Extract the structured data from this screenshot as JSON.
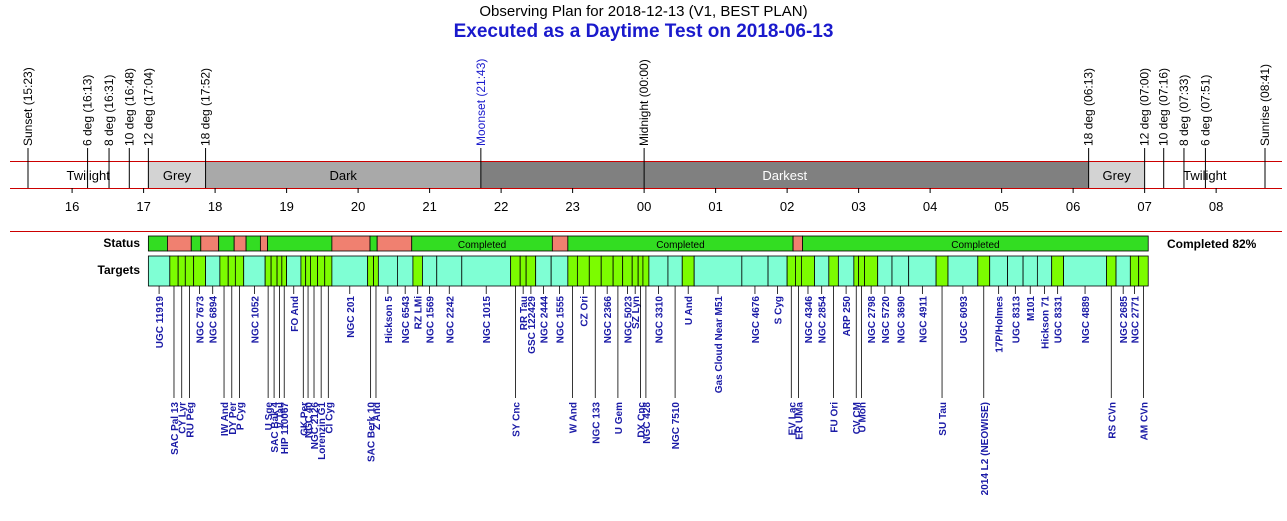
{
  "header": {
    "title": "Observing Plan for 2018-12-13 (V1, BEST PLAN)",
    "subtitle": "Executed as a Daytime Test on 2018-06-13"
  },
  "colors": {
    "twilight": "#ffffff",
    "grey": "#d3d3d3",
    "dark": "#a9a9a9",
    "darkest": "#808080",
    "completed": "#33dd22",
    "failed": "#f08070",
    "target_long": "#7fffd4",
    "target_short": "#7cfc00",
    "red_line": "#cc0000",
    "label_blue": "#1a1aa6",
    "moon_blue": "#1a1acc"
  },
  "timeline": {
    "start": "15:23",
    "end": "08:41",
    "hours": [
      "16",
      "17",
      "18",
      "19",
      "20",
      "21",
      "22",
      "23",
      "00",
      "01",
      "02",
      "03",
      "04",
      "05",
      "06",
      "07",
      "08"
    ],
    "events": [
      {
        "time": "15:23",
        "label": "Sunset (15:23)",
        "moon": false
      },
      {
        "time": "16:13",
        "label": "6 deg (16:13)",
        "moon": false
      },
      {
        "time": "16:31",
        "label": "8 deg (16:31)",
        "moon": false
      },
      {
        "time": "16:48",
        "label": "10 deg (16:48)",
        "moon": false
      },
      {
        "time": "17:04",
        "label": "12 deg (17:04)",
        "moon": false
      },
      {
        "time": "17:52",
        "label": "18 deg (17:52)",
        "moon": false
      },
      {
        "time": "21:43",
        "label": "Moonset (21:43)",
        "moon": true
      },
      {
        "time": "00:00",
        "label": "Midnight (00:00)",
        "moon": false
      },
      {
        "time": "06:13",
        "label": "18 deg (06:13)",
        "moon": false
      },
      {
        "time": "07:00",
        "label": "12 deg (07:00)",
        "moon": false
      },
      {
        "time": "07:16",
        "label": "10 deg (07:16)",
        "moon": false
      },
      {
        "time": "07:33",
        "label": "8 deg (07:33)",
        "moon": false
      },
      {
        "time": "07:51",
        "label": "6 deg (07:51)",
        "moon": false
      },
      {
        "time": "08:41",
        "label": "Sunrise (08:41)",
        "moon": false
      }
    ],
    "phases": [
      {
        "label": "Twilight",
        "start": "15:23",
        "end": "17:04",
        "kind": "twilight"
      },
      {
        "label": "Grey",
        "start": "17:04",
        "end": "17:52",
        "kind": "grey"
      },
      {
        "label": "Dark",
        "start": "17:52",
        "end": "21:43",
        "kind": "dark"
      },
      {
        "label": "Darkest",
        "start": "21:43",
        "end": "06:13",
        "kind": "darkest"
      },
      {
        "label": "Grey",
        "start": "06:13",
        "end": "07:00",
        "kind": "grey"
      },
      {
        "label": "Twilight",
        "start": "07:00",
        "end": "08:41",
        "kind": "twilight"
      }
    ]
  },
  "rows": {
    "status_label": "Status",
    "targets_label": "Targets",
    "completed_summary": "Completed 82%"
  },
  "status": [
    {
      "start": "17:04",
      "end": "17:20",
      "ok": true,
      "label": ""
    },
    {
      "start": "17:20",
      "end": "17:40",
      "ok": false,
      "label": ""
    },
    {
      "start": "17:40",
      "end": "17:48",
      "ok": true,
      "label": ""
    },
    {
      "start": "17:48",
      "end": "18:03",
      "ok": false,
      "label": ""
    },
    {
      "start": "18:03",
      "end": "18:16",
      "ok": true,
      "label": ""
    },
    {
      "start": "18:16",
      "end": "18:26",
      "ok": false,
      "label": ""
    },
    {
      "start": "18:26",
      "end": "18:38",
      "ok": true,
      "label": ""
    },
    {
      "start": "18:38",
      "end": "18:44",
      "ok": false,
      "label": ""
    },
    {
      "start": "18:44",
      "end": "19:38",
      "ok": true,
      "label": ""
    },
    {
      "start": "19:38",
      "end": "20:10",
      "ok": false,
      "label": ""
    },
    {
      "start": "20:10",
      "end": "20:16",
      "ok": true,
      "label": ""
    },
    {
      "start": "20:16",
      "end": "20:45",
      "ok": false,
      "label": ""
    },
    {
      "start": "20:45",
      "end": "22:43",
      "ok": true,
      "label": "Completed"
    },
    {
      "start": "22:43",
      "end": "22:56",
      "ok": false,
      "label": ""
    },
    {
      "start": "22:56",
      "end": "02:05",
      "ok": true,
      "label": "Completed"
    },
    {
      "start": "02:05",
      "end": "02:13",
      "ok": false,
      "label": ""
    },
    {
      "start": "02:13",
      "end": "07:03",
      "ok": true,
      "label": "Completed"
    }
  ],
  "targets": [
    {
      "name": "UGC 11919",
      "start": "17:04",
      "end": "17:22",
      "pos": "top"
    },
    {
      "name": "SAC Pal 13",
      "start": "17:22",
      "end": "17:29",
      "pos": "bottom"
    },
    {
      "name": "CY Lyr",
      "start": "17:29",
      "end": "17:35",
      "pos": "bottom"
    },
    {
      "name": "RU Peg",
      "start": "17:35",
      "end": "17:42",
      "pos": "bottom"
    },
    {
      "name": "NGC 7673",
      "start": "17:42",
      "end": "17:52",
      "pos": "top"
    },
    {
      "name": "NGC 6894",
      "start": "17:52",
      "end": "18:04",
      "pos": "top"
    },
    {
      "name": "IW And",
      "start": "18:04",
      "end": "18:11",
      "pos": "bottom"
    },
    {
      "name": "DY Per",
      "start": "18:11",
      "end": "18:17",
      "pos": "bottom"
    },
    {
      "name": "P Cyg",
      "start": "18:17",
      "end": "18:24",
      "pos": "bottom"
    },
    {
      "name": "NGC 1052",
      "start": "18:24",
      "end": "18:42",
      "pos": "top"
    },
    {
      "name": "U Sge",
      "start": "18:42",
      "end": "18:47",
      "pos": "bottom"
    },
    {
      "name": "SAC Bak 4",
      "start": "18:47",
      "end": "18:52",
      "pos": "bottom"
    },
    {
      "name": "V Tau",
      "start": "18:52",
      "end": "18:56",
      "pos": "bottom"
    },
    {
      "name": "HIP 110067",
      "start": "18:56",
      "end": "19:00",
      "pos": "bottom"
    },
    {
      "name": "FO And",
      "start": "19:00",
      "end": "19:12",
      "pos": "top"
    },
    {
      "name": "GK Per",
      "start": "19:12",
      "end": "19:16",
      "pos": "bottom"
    },
    {
      "name": "NGC 40",
      "start": "19:16",
      "end": "19:20",
      "pos": "bottom"
    },
    {
      "name": "NGC 2126",
      "start": "19:20",
      "end": "19:26",
      "pos": "bottom"
    },
    {
      "name": "Lorenzin G1",
      "start": "19:26",
      "end": "19:32",
      "pos": "bottom"
    },
    {
      "name": "CI Cyg",
      "start": "19:32",
      "end": "19:38",
      "pos": "bottom"
    },
    {
      "name": "NGC 201",
      "start": "19:38",
      "end": "20:08",
      "pos": "top"
    },
    {
      "name": "SAC Berk 10",
      "start": "20:08",
      "end": "20:13",
      "pos": "bottom"
    },
    {
      "name": "Z And",
      "start": "20:13",
      "end": "20:17",
      "pos": "bottom"
    },
    {
      "name": "Hickson 5",
      "start": "20:17",
      "end": "20:33",
      "pos": "top"
    },
    {
      "name": "NGC 6543",
      "start": "20:33",
      "end": "20:46",
      "pos": "top"
    },
    {
      "name": "RZ LMi",
      "start": "20:46",
      "end": "20:54",
      "pos": "top"
    },
    {
      "name": "NGC 1569",
      "start": "20:54",
      "end": "21:06",
      "pos": "top"
    },
    {
      "name": "NGC 2242",
      "start": "21:06",
      "end": "21:27",
      "pos": "top"
    },
    {
      "name": "NGC 1015",
      "start": "21:27",
      "end": "22:08",
      "pos": "top"
    },
    {
      "name": "SY Cnc",
      "start": "22:08",
      "end": "22:16",
      "pos": "bottom"
    },
    {
      "name": "RR Tau",
      "start": "22:16",
      "end": "22:21",
      "pos": "top"
    },
    {
      "name": "GSC 122429",
      "start": "22:21",
      "end": "22:29",
      "pos": "top"
    },
    {
      "name": "NGC 2444",
      "start": "22:29",
      "end": "22:42",
      "pos": "top"
    },
    {
      "name": "NGC 1555",
      "start": "22:42",
      "end": "22:56",
      "pos": "top"
    },
    {
      "name": "W And",
      "start": "22:56",
      "end": "23:04",
      "pos": "bottom"
    },
    {
      "name": "CZ Ori",
      "start": "23:04",
      "end": "23:14",
      "pos": "top"
    },
    {
      "name": "NGC 133",
      "start": "23:14",
      "end": "23:24",
      "pos": "bottom"
    },
    {
      "name": "NGC 2366",
      "start": "23:24",
      "end": "23:34",
      "pos": "top"
    },
    {
      "name": "U Gem",
      "start": "23:34",
      "end": "23:42",
      "pos": "bottom"
    },
    {
      "name": "NGC 5023",
      "start": "23:42",
      "end": "23:50",
      "pos": "top"
    },
    {
      "name": "SZ Lyn",
      "start": "23:50",
      "end": "23:55",
      "pos": "top"
    },
    {
      "name": "DX Cnc",
      "start": "23:55",
      "end": "23:59",
      "pos": "bottom"
    },
    {
      "name": "NGC 428",
      "start": "23:59",
      "end": "00:04",
      "pos": "bottom"
    },
    {
      "name": "NGC 3310",
      "start": "00:04",
      "end": "00:20",
      "pos": "top"
    },
    {
      "name": "NGC 7510",
      "start": "00:20",
      "end": "00:32",
      "pos": "bottom"
    },
    {
      "name": "U And",
      "start": "00:32",
      "end": "00:42",
      "pos": "top"
    },
    {
      "name": "Gas Cloud Near M51",
      "start": "00:42",
      "end": "01:22",
      "pos": "top"
    },
    {
      "name": "NGC 4676",
      "start": "01:22",
      "end": "01:44",
      "pos": "top"
    },
    {
      "name": "S Cyg",
      "start": "01:44",
      "end": "02:00",
      "pos": "top"
    },
    {
      "name": "EV Lac",
      "start": "02:00",
      "end": "02:07",
      "pos": "bottom"
    },
    {
      "name": "ER UMa",
      "start": "02:07",
      "end": "02:12",
      "pos": "bottom"
    },
    {
      "name": "NGC 4346",
      "start": "02:12",
      "end": "02:23",
      "pos": "top"
    },
    {
      "name": "NGC 2854",
      "start": "02:23",
      "end": "02:35",
      "pos": "top"
    },
    {
      "name": "FU Ori",
      "start": "02:35",
      "end": "02:43",
      "pos": "bottom"
    },
    {
      "name": "ARP 250",
      "start": "02:43",
      "end": "02:56",
      "pos": "top"
    },
    {
      "name": "CV CM",
      "start": "02:56",
      "end": "03:00",
      "pos": "bottom"
    },
    {
      "name": "U Mon",
      "start": "03:00",
      "end": "03:05",
      "pos": "bottom"
    },
    {
      "name": "NGC 2798",
      "start": "03:05",
      "end": "03:16",
      "pos": "top"
    },
    {
      "name": "NGC 5720",
      "start": "03:16",
      "end": "03:28",
      "pos": "top"
    },
    {
      "name": "NGC 3690",
      "start": "03:28",
      "end": "03:42",
      "pos": "top"
    },
    {
      "name": "NGC 4911",
      "start": "03:42",
      "end": "04:05",
      "pos": "top"
    },
    {
      "name": "SU Tau",
      "start": "04:05",
      "end": "04:15",
      "pos": "bottom"
    },
    {
      "name": "UGC 6093",
      "start": "04:15",
      "end": "04:40",
      "pos": "top"
    },
    {
      "name": "2014 L2 (NEOWISE)",
      "start": "04:40",
      "end": "04:50",
      "pos": "bottom"
    },
    {
      "name": "17P/Holmes",
      "start": "04:50",
      "end": "05:05",
      "pos": "top"
    },
    {
      "name": "UGC 8313",
      "start": "05:05",
      "end": "05:18",
      "pos": "top"
    },
    {
      "name": "M101",
      "start": "05:18",
      "end": "05:30",
      "pos": "top"
    },
    {
      "name": "Hickson 71",
      "start": "05:30",
      "end": "05:42",
      "pos": "top"
    },
    {
      "name": "UGC 8331",
      "start": "05:42",
      "end": "05:52",
      "pos": "top"
    },
    {
      "name": "NGC 4889",
      "start": "05:52",
      "end": "06:28",
      "pos": "top"
    },
    {
      "name": "RS CVn",
      "start": "06:28",
      "end": "06:36",
      "pos": "bottom"
    },
    {
      "name": "NGC 2685",
      "start": "06:36",
      "end": "06:48",
      "pos": "top"
    },
    {
      "name": "NGC 2771",
      "start": "06:48",
      "end": "06:55",
      "pos": "top"
    },
    {
      "name": "AM CVn",
      "start": "06:55",
      "end": "07:03",
      "pos": "bottom"
    }
  ]
}
